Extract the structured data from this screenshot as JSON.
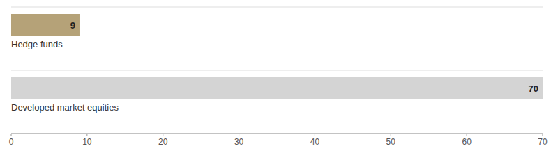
{
  "chart_data": {
    "type": "bar",
    "orientation": "horizontal",
    "categories": [
      "Hedge funds",
      "Developed market equities"
    ],
    "values": [
      9,
      70
    ],
    "colors": [
      "#b5a278",
      "#d4d4d4"
    ],
    "xlim": [
      0,
      70
    ],
    "xticks": [
      0,
      10,
      20,
      30,
      40,
      50,
      60,
      70
    ],
    "data_labels": true,
    "grid": false
  }
}
